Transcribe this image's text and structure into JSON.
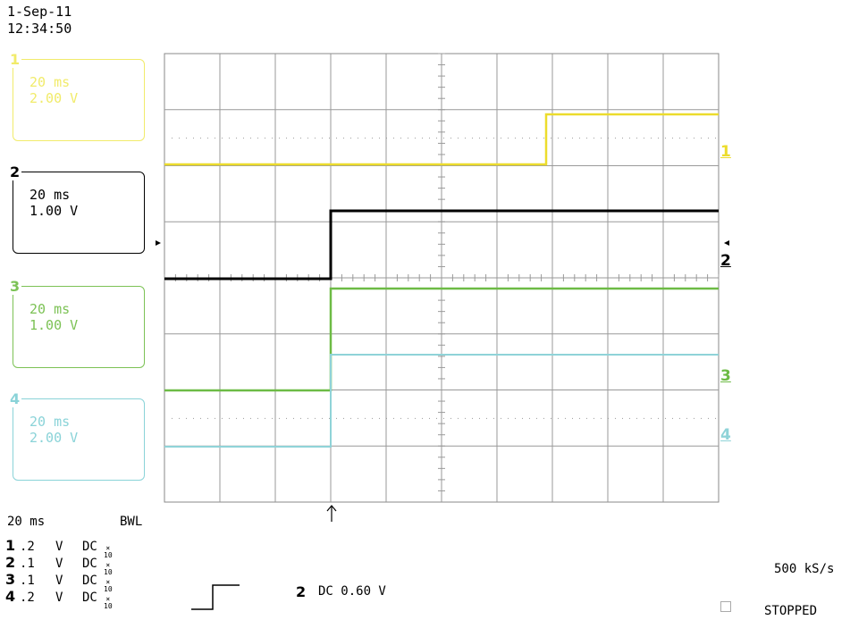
{
  "header": {
    "date": "1-Sep-11",
    "time": "12:34:50"
  },
  "channels": [
    {
      "num": "1",
      "timebase": "20 ms",
      "volts": "2.00 V",
      "color": "#f1eb6a"
    },
    {
      "num": "2",
      "timebase": "20 ms",
      "volts": "1.00 V",
      "color": "#000000"
    },
    {
      "num": "3",
      "timebase": "20 ms",
      "volts": "1.00 V",
      "color": "#7cc255"
    },
    {
      "num": "4",
      "timebase": "20 ms",
      "volts": "2.00 V",
      "color": "#8ad3d8"
    }
  ],
  "trace_labels": [
    "1",
    "2",
    "3",
    "4"
  ],
  "trace_colors": {
    "1": "#ecdc2c",
    "2": "#000000",
    "3": "#6dbb45",
    "4": "#8fd3d8"
  },
  "bottom": {
    "timebase": "20 ms",
    "bwl": "BWL",
    "rows": [
      {
        "num": "1",
        "scale": ".2",
        "unit": "V",
        "coupling": "DC",
        "probe_top": "×",
        "probe_bot": "10"
      },
      {
        "num": "2",
        "scale": ".1",
        "unit": "V",
        "coupling": "DC",
        "probe_top": "×",
        "probe_bot": "10"
      },
      {
        "num": "3",
        "scale": ".1",
        "unit": "V",
        "coupling": "DC",
        "probe_top": "×",
        "probe_bot": "10"
      },
      {
        "num": "4",
        "scale": ".2",
        "unit": "V",
        "coupling": "DC",
        "probe_top": "×",
        "probe_bot": "10"
      }
    ],
    "trigger_channel": "2",
    "trigger_text": "DC 0.60 V",
    "sample_rate": "500 kS/s",
    "status": "STOPPED"
  }
}
